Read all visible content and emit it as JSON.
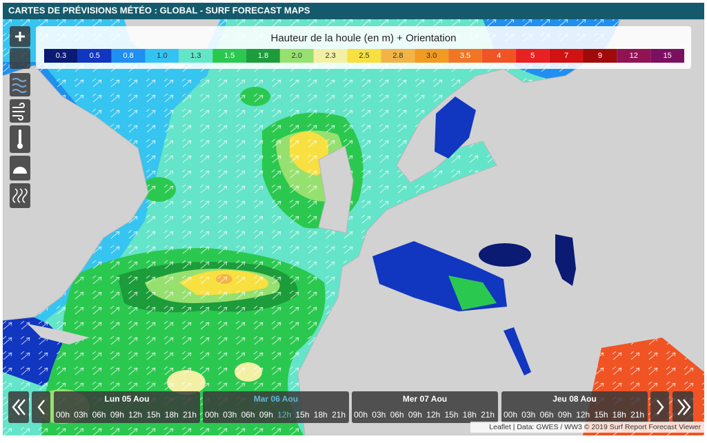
{
  "header": {
    "title": "CARTES DE PRÉVISIONS MÉTÉO : GLOBAL - SURF FORECAST MAPS"
  },
  "legend": {
    "title": "Hauteur de la houle (en m) + Orientation",
    "items": [
      {
        "label": "0.3",
        "color": "#0b1a72"
      },
      {
        "label": "0.5",
        "color": "#1136c0"
      },
      {
        "label": "0.8",
        "color": "#1f8ff0"
      },
      {
        "label": "1.0",
        "color": "#33c3f2"
      },
      {
        "label": "1.3",
        "color": "#62e6c8"
      },
      {
        "label": "1.5",
        "color": "#2bc850"
      },
      {
        "label": "1.8",
        "color": "#1c9c3a"
      },
      {
        "label": "2.0",
        "color": "#96e070"
      },
      {
        "label": "2.3",
        "color": "#f2f0a4"
      },
      {
        "label": "2.5",
        "color": "#f7e040"
      },
      {
        "label": "2.8",
        "color": "#f2b446"
      },
      {
        "label": "3.0",
        "color": "#f29a22"
      },
      {
        "label": "3.5",
        "color": "#f07626"
      },
      {
        "label": "4",
        "color": "#f05424"
      },
      {
        "label": "5",
        "color": "#e82222"
      },
      {
        "label": "7",
        "color": "#d01212"
      },
      {
        "label": "9",
        "color": "#a00a0a"
      },
      {
        "label": "12",
        "color": "#901454"
      },
      {
        "label": "15",
        "color": "#7c1060"
      }
    ]
  },
  "timeline": {
    "days": [
      {
        "label": "Lun 05 Aou",
        "active": false
      },
      {
        "label": "Mar 06 Aou",
        "active": true
      },
      {
        "label": "Mer 07 Aou",
        "active": false
      },
      {
        "label": "Jeu 08 Aou",
        "active": false
      }
    ],
    "hours": [
      "00h",
      "03h",
      "06h",
      "09h",
      "12h",
      "15h",
      "18h",
      "21h"
    ]
  },
  "attribution": "Leaflet | Data: GWES / WW3 © 2019 Surf Report Forecast Viewer"
}
